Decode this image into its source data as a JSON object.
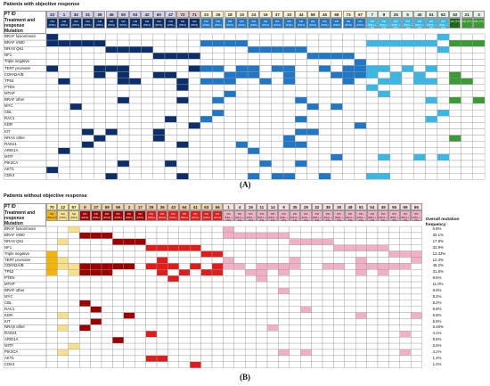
{
  "colors": {
    "grid": "#9a9a9a",
    "navy": "#0b2f6b",
    "blue": "#1f77c8",
    "cyan": "#38b8e6",
    "green": "#3a9a33",
    "pale_green": "#cfe7c7",
    "dark_red": "#9e0000",
    "red": "#e21b1b",
    "pink": "#f2b0c6",
    "orange": "#f4b400",
    "yellow": "#f7e08a",
    "purple_id": "#6f3fb0",
    "lav_id": "#d8d0f0",
    "cream_id": "#fdf4cc",
    "tan_id": "#f2d2a8"
  },
  "panel_a": {
    "section_title": "Patients with objective response",
    "label": "(A)",
    "pt_id_label": "PT ID",
    "treatment_label": "Treatment and response",
    "mutation_label": "Mutation",
    "ids": [
      "22",
      "1",
      "34",
      "31",
      "39",
      "46",
      "50",
      "53",
      "42",
      "60",
      "47",
      "72",
      "71",
      "23",
      "26",
      "18",
      "10",
      "24",
      "16",
      "37",
      "33",
      "44",
      "58",
      "45",
      "68",
      "73",
      "67",
      "7",
      "8",
      "25",
      "5",
      "40",
      "51",
      "62",
      "52",
      "21",
      "3"
    ],
    "resp": [
      "CR (PD1)",
      "CR (PD1)",
      "CR (PD1)",
      "CR (PD1)",
      "CR (PD1)",
      "CR (PD1)",
      "CR (PD1)",
      "CR (PD1)",
      "CR (PD1)",
      "CR (PD1)",
      "CR (PD1)",
      "CR (PD1)",
      "CR (PD1)",
      "PR (PD1)",
      "PR (PD1)",
      "PR (PD1)",
      "PR (PD1)",
      "PR (PD1)",
      "PR (PD1)",
      "PR (PD1)",
      "PR (PD1)",
      "PR (PD1)",
      "PR (PD1)",
      "PR (PD1)",
      "PR (PD1)",
      "PR (PD1)",
      "PR (PD1)",
      "PR (PD1 + TT)",
      "PR (PD1 + TT)",
      "PR (PD1 + TT)",
      "PR (PD1 + TT)",
      "PR (PD1 + TT)",
      "PR (PD1 + TT)",
      "PR (PD1 + TT)",
      "CR (TT)",
      "PR (TT)",
      "PR (TT)"
    ],
    "genes": [
      "BRAF fusion/ream",
      "BRAF V600",
      "NRAS Q61",
      "NF1",
      "Triple negative",
      "TERT promoter",
      "CDKN2A/B",
      "TP53",
      "PTEN",
      "MTAP",
      "BRAF other",
      "MYC",
      "CBL",
      "RAC1",
      "KDR",
      "KIT",
      "NRAS other",
      "RAD21",
      "ARID1A",
      "MITF",
      "PIK3CA",
      "AKT1",
      "CDK4"
    ]
  },
  "panel_b": {
    "section_title": "Patients without objective response",
    "label": "(B)",
    "pt_id_label": "PT ID",
    "treatment_label": "Treatment and response",
    "mutation_label": "Mutation",
    "overall_header": "Overall mutation frequency",
    "ids": [
      "70",
      "12",
      "57",
      "9",
      "27",
      "59",
      "56",
      "2",
      "17",
      "29",
      "36",
      "43",
      "64",
      "41",
      "63",
      "66",
      "1",
      "4",
      "19",
      "11",
      "14",
      "9",
      "35",
      "28",
      "32",
      "38",
      "30",
      "48",
      "61",
      "54",
      "49",
      "55",
      "69",
      "65"
    ],
    "resp": [
      "SD (PD1+TT)",
      "SD (PD1)",
      "SD (PD1)",
      "PD (PD1)",
      "PD (PD1)",
      "PD (PD1)",
      "PD (PD1)",
      "PD (PD1)",
      "PD (PD1)",
      "PD (PD1)",
      "PD (PD1)",
      "PD (PD1)",
      "PD (PD1)",
      "PD (PD1)",
      "PD (PD1)",
      "PD (PD1)",
      "PD (PD1 + TT)",
      "PD (PD1 + TT)",
      "PD (PD1 + TT)",
      "PD (PD1 + TT)",
      "PD (PD1 + TT)",
      "PD (PD1 + TT)",
      "PD (PD1 + TT)",
      "PD (PD1 + TT)",
      "PD (PD1 + TT)",
      "PD (PD1 + TT)",
      "PD (PD1 + TT)",
      "PD (PD1 + TT)",
      "PD (PD1 + TT)",
      "PD (PD1 + TT)",
      "PD (PD1 + TT)",
      "PD (PD1 + TT)",
      "PD (PD1 + TT)",
      "PD (PD1 + TT)"
    ],
    "genes": [
      "BRAF fusion/ream",
      "BRAF V600",
      "NRAS Q61",
      "NF1",
      "Triple negative",
      "TERT promoter",
      "CDKN2A/B",
      "TP53",
      "PTEN",
      "MTAP",
      "BRAF other",
      "MYC",
      "CBL",
      "RAC1",
      "KDR",
      "KIT",
      "NRAS other",
      "RAD21",
      "ARID1A",
      "MITF",
      "PIK3CA",
      "AKT1",
      "CDK4"
    ],
    "freq": [
      "6.8%",
      "30.1%",
      "17.8%",
      "32.9%",
      "12.33%",
      "12.3%",
      "45.2%",
      "31.5%",
      "9.6%",
      "11.0%",
      "9.6%",
      "8.2%",
      "8.2%",
      "6.8%",
      "6.8%",
      "6.8%",
      "6.48%",
      "4.1%",
      "5.5%",
      "5.5%",
      "4.1%",
      "1.4%",
      "1.4%"
    ]
  }
}
